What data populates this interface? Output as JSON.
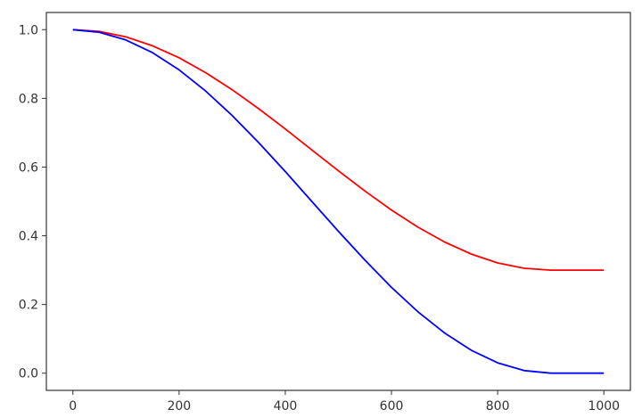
{
  "chart_data": {
    "type": "line",
    "title": "",
    "xlabel": "",
    "ylabel": "",
    "xlim": [
      -50,
      1050
    ],
    "ylim": [
      -0.05,
      1.05
    ],
    "grid": false,
    "xticks": [
      "0",
      "200",
      "400",
      "600",
      "800",
      "1000"
    ],
    "yticks": [
      "0.0",
      "0.2",
      "0.4",
      "0.6",
      "0.8",
      "1.0"
    ],
    "x": [
      0,
      50,
      100,
      150,
      200,
      250,
      300,
      350,
      400,
      450,
      500,
      550,
      600,
      650,
      700,
      750,
      800,
      850,
      900,
      950,
      1000
    ],
    "series": [
      {
        "color": "#ff0000",
        "values": [
          1.0,
          0.9947,
          0.9789,
          0.9531,
          0.9181,
          0.875,
          0.825,
          0.7697,
          0.7108,
          0.65,
          0.5892,
          0.5303,
          0.475,
          0.425,
          0.3819,
          0.3469,
          0.3211,
          0.3053,
          0.3,
          0.3,
          0.3
        ]
      },
      {
        "color": "#0000ff",
        "values": [
          1.0,
          0.9924,
          0.9698,
          0.933,
          0.883,
          0.8214,
          0.75,
          0.671,
          0.5868,
          0.5,
          0.4132,
          0.329,
          0.25,
          0.1786,
          0.117,
          0.067,
          0.0302,
          0.0076,
          0.0,
          0.0,
          0.0
        ]
      }
    ]
  }
}
